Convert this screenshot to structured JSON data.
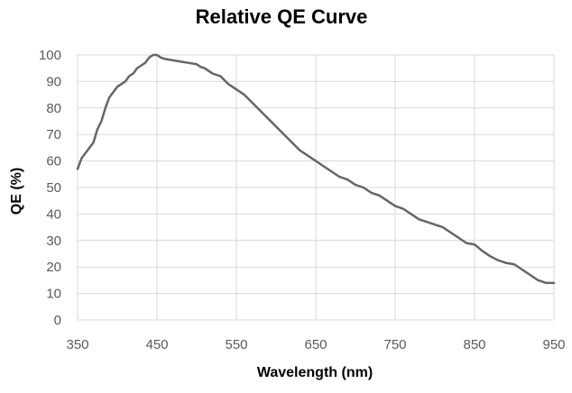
{
  "chart_data": {
    "type": "line",
    "title": "Relative QE Curve",
    "xlabel": "Wavelength (nm)",
    "ylabel": "QE (%)",
    "xlim": [
      350,
      950
    ],
    "ylim": [
      0,
      100
    ],
    "x_ticks": [
      350,
      450,
      550,
      650,
      750,
      850,
      950
    ],
    "y_ticks": [
      0,
      10,
      20,
      30,
      40,
      50,
      60,
      70,
      80,
      90,
      100
    ],
    "grid": true,
    "legend": "none",
    "line_color": "#666666",
    "grid_color": "#d9d9d9",
    "series": [
      {
        "x": [
          350,
          355,
          360,
          370,
          375,
          380,
          385,
          390,
          395,
          400,
          405,
          410,
          415,
          420,
          425,
          430,
          435,
          440,
          445,
          450,
          455,
          460,
          470,
          480,
          490,
          500,
          505,
          510,
          520,
          530,
          540,
          550,
          560,
          570,
          580,
          590,
          600,
          610,
          620,
          630,
          640,
          650,
          660,
          670,
          680,
          690,
          700,
          710,
          720,
          730,
          740,
          750,
          760,
          770,
          780,
          790,
          800,
          810,
          820,
          830,
          840,
          850,
          860,
          870,
          880,
          890,
          900,
          910,
          920,
          930,
          940,
          950
        ],
        "y": [
          57,
          61,
          63,
          67,
          72,
          75,
          80,
          84,
          86,
          88,
          89,
          90,
          92,
          93,
          95,
          96,
          97,
          99,
          100,
          100,
          99,
          98.5,
          98,
          97.5,
          97,
          96.5,
          95.5,
          95,
          93,
          92,
          89,
          87,
          85,
          82,
          79,
          76,
          73,
          70,
          67,
          64,
          62,
          60,
          58,
          56,
          54,
          53,
          51,
          50,
          48,
          47,
          45,
          43,
          42,
          40,
          38,
          37,
          36,
          35,
          33,
          31,
          29,
          28.5,
          26,
          24,
          22.5,
          21.5,
          21,
          19,
          17,
          15,
          14,
          14
        ]
      }
    ]
  }
}
